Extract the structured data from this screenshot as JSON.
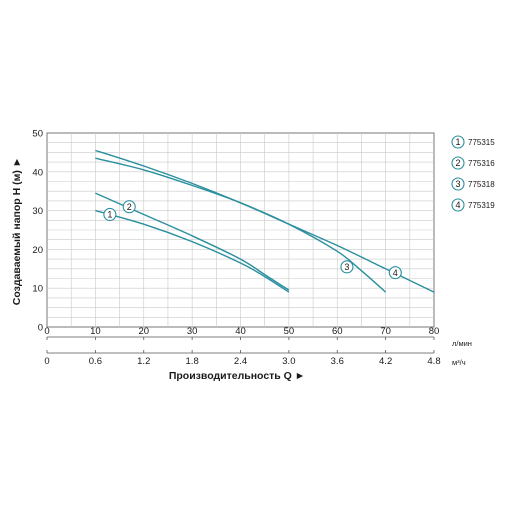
{
  "chart_data": {
    "type": "line",
    "ylabel": "Создаваемый напор H (м) ►",
    "xlabel": "Производительность Q ►",
    "x_unit_top": "л/мин",
    "x_unit_bottom": "м³/ч",
    "xlim": [
      0,
      80
    ],
    "ylim": [
      0,
      50
    ],
    "x_ticks_lpm": [
      "0",
      "10",
      "20",
      "30",
      "40",
      "50",
      "60",
      "70",
      "80"
    ],
    "x_ticks_m3h": [
      "0",
      "0.6",
      "1.2",
      "1.8",
      "2.4",
      "3.0",
      "3.6",
      "4.2",
      "4.8"
    ],
    "y_ticks": [
      "0",
      "10",
      "20",
      "30",
      "40",
      "50"
    ],
    "grid": true,
    "legend_position": "right",
    "line_color": "#2a8f9e",
    "series": [
      {
        "name": "775315",
        "marker": "1",
        "x": [
          10,
          20,
          30,
          40,
          45,
          50
        ],
        "y": [
          30,
          26.5,
          22,
          16.5,
          13,
          9
        ],
        "marker_x": 13,
        "marker_y": 29
      },
      {
        "name": "775316",
        "marker": "2",
        "x": [
          10,
          20,
          30,
          40,
          45,
          50
        ],
        "y": [
          34.5,
          29,
          23.5,
          17.5,
          13.5,
          9.5
        ],
        "marker_x": 17,
        "marker_y": 31
      },
      {
        "name": "775318",
        "marker": "3",
        "x": [
          10,
          20,
          30,
          40,
          50,
          60,
          65,
          70
        ],
        "y": [
          43.5,
          40.5,
          36.5,
          32,
          26.5,
          19.5,
          14.5,
          9
        ],
        "marker_x": 62,
        "marker_y": 15.5
      },
      {
        "name": "775319",
        "marker": "4",
        "x": [
          10,
          20,
          30,
          40,
          50,
          60,
          70,
          80
        ],
        "y": [
          45.5,
          41.5,
          37,
          32,
          26.5,
          21,
          15,
          9
        ],
        "marker_x": 72,
        "marker_y": 14
      }
    ]
  }
}
